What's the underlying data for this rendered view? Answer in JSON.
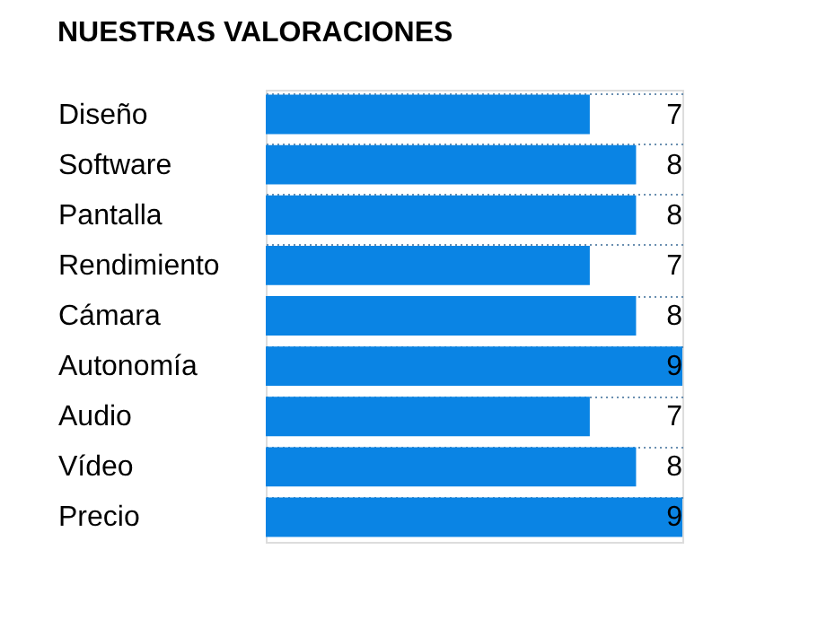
{
  "chart_data": {
    "type": "bar",
    "orientation": "horizontal",
    "title": "NUESTRAS VALORACIONES",
    "categories": [
      "Diseño",
      "Software",
      "Pantalla",
      "Rendimiento",
      "Cámara",
      "Autonomía",
      "Audio",
      "Vídeo",
      "Precio"
    ],
    "values": [
      7,
      8,
      8,
      7,
      8,
      9,
      7,
      8,
      9
    ],
    "color": "#0a84e4",
    "data_labels": true,
    "grid": "y"
  }
}
